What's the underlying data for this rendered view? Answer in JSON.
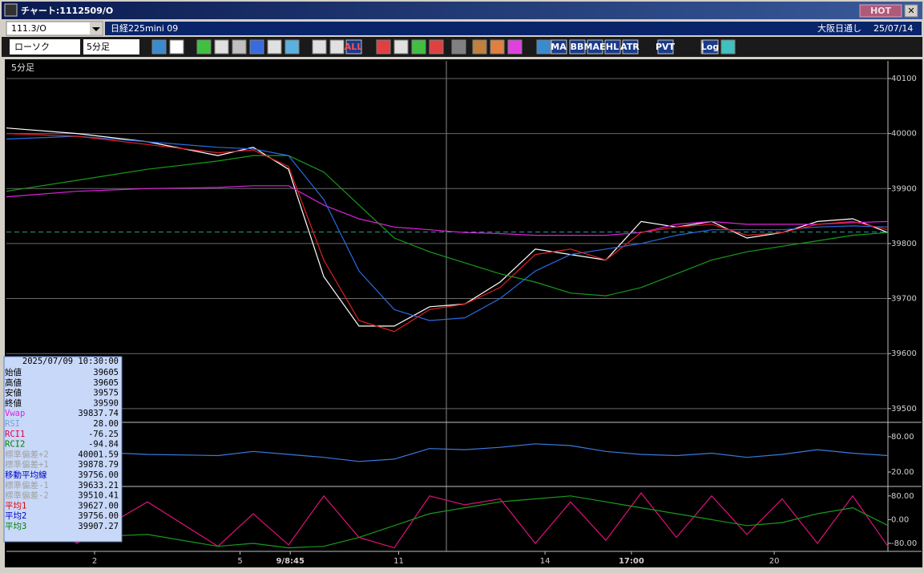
{
  "window": {
    "title": "チャート:1112509/O",
    "hot": "HOT"
  },
  "header": {
    "symbol": "111.3/O",
    "instrument": "日経225mini 09",
    "exchange": "大阪日通し",
    "date": "25/07/14"
  },
  "toolbar": {
    "chart_type": "ローソク",
    "interval": "5分足",
    "buttons": [
      "ALL",
      "MA",
      "BB",
      "MAE",
      "HL",
      "ATR",
      "PVT",
      "Log"
    ]
  },
  "info_panel": {
    "datetime": "2025/07/09  10:30:00",
    "rows": [
      {
        "label": "始値",
        "value": "39605",
        "color": "#000000"
      },
      {
        "label": "高値",
        "value": "39605",
        "color": "#000000"
      },
      {
        "label": "安値",
        "value": "39575",
        "color": "#000000"
      },
      {
        "label": "終値",
        "value": "39590",
        "color": "#000000"
      },
      {
        "label": "Vwap",
        "value": "39837.74",
        "color": "#e020e0"
      },
      {
        "label": "RSI",
        "value": "28.00",
        "color": "#7aa0d8"
      },
      {
        "label": "RCI1",
        "value": "-76.25",
        "color": "#e00050"
      },
      {
        "label": "RCI2",
        "value": "-94.84",
        "color": "#008000"
      },
      {
        "label": "標準偏差+2",
        "value": "40001.59",
        "color": "#a0a0a0"
      },
      {
        "label": "標準偏差+1",
        "value": "39878.79",
        "color": "#a0a0a0"
      },
      {
        "label": "移動平均線",
        "value": "39756.00",
        "color": "#0000c0"
      },
      {
        "label": "標準偏差-1",
        "value": "39633.21",
        "color": "#a0a0a0"
      },
      {
        "label": "標準偏差-2",
        "value": "39510.41",
        "color": "#a0a0a0"
      },
      {
        "label": "平均1",
        "value": "39627.00",
        "color": "#e00000"
      },
      {
        "label": "平均2",
        "value": "39756.00",
        "color": "#0000c0"
      },
      {
        "label": "平均3",
        "value": "39907.27",
        "color": "#008000"
      }
    ]
  },
  "chart_data": [
    {
      "type": "line",
      "title": "5分足",
      "x": [
        0,
        8,
        16,
        24,
        28,
        32,
        36,
        40,
        44,
        48,
        52,
        56,
        60,
        64,
        68,
        72,
        76,
        80,
        84,
        88,
        92,
        96,
        100
      ],
      "xlim": [
        0,
        100
      ],
      "xticks": [
        {
          "value": 10,
          "label": "2"
        },
        {
          "value": 26.5,
          "label": "5"
        },
        {
          "value": 32.2,
          "label": "9/8:45"
        },
        {
          "value": 44.5,
          "label": "11"
        },
        {
          "value": 61.1,
          "label": "14"
        },
        {
          "value": 70.9,
          "label": "17:00"
        },
        {
          "value": 87.1,
          "label": "20"
        }
      ],
      "ylim": [
        39475,
        40132
      ],
      "yticks": [
        39500,
        39600,
        39700,
        39800,
        39900,
        40000,
        40100
      ],
      "grid": true,
      "reference_line": 39821,
      "series": [
        {
          "name": "終値",
          "color": "#ffffff",
          "values": [
            40010,
            40000,
            39985,
            39960,
            39975,
            39935,
            39740,
            39650,
            39650,
            39685,
            39690,
            39730,
            39790,
            39780,
            39770,
            39840,
            39830,
            39840,
            39810,
            39820,
            39840,
            39845,
            39820
          ]
        },
        {
          "name": "Vwap",
          "color": "#e020e0",
          "values": [
            39885,
            39895,
            39900,
            39902,
            39905,
            39905,
            39870,
            39845,
            39830,
            39825,
            39820,
            39818,
            39815,
            39815,
            39815,
            39820,
            39835,
            39840,
            39835,
            39835,
            39835,
            39838,
            39840
          ]
        },
        {
          "name": "平均3",
          "color": "#1a9a1a",
          "values": [
            39895,
            39915,
            39935,
            39950,
            39960,
            39960,
            39930,
            39870,
            39810,
            39785,
            39765,
            39745,
            39730,
            39710,
            39705,
            39720,
            39745,
            39770,
            39785,
            39795,
            39805,
            39815,
            39820
          ]
        },
        {
          "name": "平均2",
          "color": "#2a6ae0",
          "values": [
            39990,
            39995,
            39985,
            39975,
            39972,
            39960,
            39880,
            39750,
            39680,
            39660,
            39665,
            39700,
            39750,
            39780,
            39790,
            39800,
            39815,
            39825,
            39825,
            39825,
            39830,
            39832,
            39830
          ]
        },
        {
          "name": "平均1",
          "color": "#e02020",
          "values": [
            40000,
            39995,
            39980,
            39965,
            39970,
            39940,
            39770,
            39660,
            39640,
            39680,
            39690,
            39720,
            39780,
            39790,
            39770,
            39820,
            39830,
            39835,
            39815,
            39820,
            39835,
            39840,
            39825
          ]
        }
      ]
    },
    {
      "type": "line",
      "x": [
        0,
        8,
        16,
        24,
        28,
        32,
        36,
        40,
        44,
        48,
        52,
        56,
        60,
        64,
        68,
        72,
        76,
        80,
        84,
        88,
        92,
        96,
        100
      ],
      "xlim": [
        0,
        100
      ],
      "ylim": [
        -4.5,
        104.5
      ],
      "yticks": [
        {
          "value": 80,
          "label": "80.00"
        },
        {
          "value": 20,
          "label": "20.00"
        }
      ],
      "series": [
        {
          "name": "RSI",
          "color": "#3a7ae0",
          "values": [
            52,
            55,
            50,
            48,
            55,
            50,
            45,
            38,
            42,
            60,
            58,
            62,
            68,
            65,
            55,
            50,
            48,
            52,
            45,
            50,
            58,
            52,
            48
          ]
        }
      ]
    },
    {
      "type": "line",
      "x": [
        0,
        8,
        16,
        24,
        28,
        32,
        36,
        40,
        44,
        48,
        52,
        56,
        60,
        64,
        68,
        72,
        76,
        80,
        84,
        88,
        92,
        96,
        100
      ],
      "xlim": [
        0,
        100
      ],
      "ylim": [
        -107,
        112
      ],
      "yticks": [
        {
          "value": 80,
          "label": "80.00"
        },
        {
          "value": 0,
          "label": "0.00"
        },
        {
          "value": -80,
          "label": "-80.00"
        }
      ],
      "series": [
        {
          "name": "RCI1",
          "color": "#e0107a",
          "values": [
            80,
            -80,
            60,
            -90,
            20,
            -85,
            80,
            -60,
            -95,
            80,
            50,
            70,
            -80,
            60,
            -70,
            90,
            -60,
            80,
            -50,
            70,
            -80,
            80,
            -90
          ]
        },
        {
          "name": "RCI2",
          "color": "#1a9a1a",
          "values": [
            -40,
            -60,
            -50,
            -90,
            -80,
            -95,
            -90,
            -60,
            -20,
            20,
            40,
            60,
            70,
            80,
            60,
            40,
            20,
            0,
            -20,
            -10,
            20,
            40,
            -20
          ]
        }
      ]
    }
  ]
}
